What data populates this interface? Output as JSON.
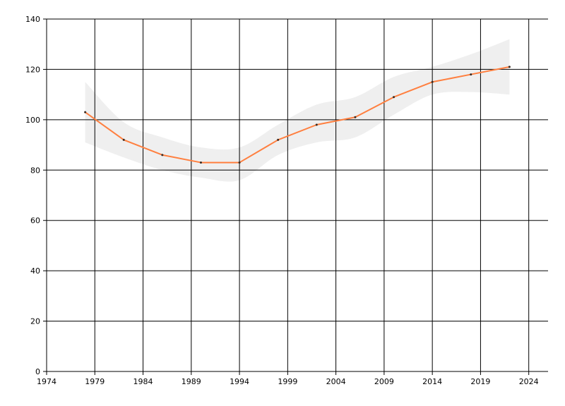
{
  "chart_data": {
    "type": "line",
    "title": "",
    "xlabel": "",
    "ylabel": "",
    "xlim": [
      1974,
      2026
    ],
    "ylim": [
      0,
      140
    ],
    "x_ticks": [
      1974,
      1979,
      1984,
      1989,
      1994,
      1999,
      2004,
      2009,
      2014,
      2019,
      2024
    ],
    "y_ticks": [
      0,
      20,
      40,
      60,
      80,
      100,
      120,
      140
    ],
    "grid": true,
    "legend": "none",
    "series": [
      {
        "x": [
          1978,
          1982,
          1986,
          1990,
          1994,
          1998,
          2002,
          2006,
          2010,
          2014,
          2018,
          2022
        ],
        "values": [
          103,
          92,
          86,
          83,
          83,
          92,
          98,
          101,
          109,
          115,
          118,
          121
        ],
        "band_upper": [
          115,
          99,
          93,
          89,
          89,
          98,
          106,
          109,
          117,
          121,
          126,
          132
        ],
        "band_lower": [
          91,
          85,
          80,
          77,
          76,
          86,
          91,
          93,
          102,
          110,
          111,
          110
        ],
        "color": "#ff7f3f",
        "band_color": "#efefef"
      }
    ]
  }
}
